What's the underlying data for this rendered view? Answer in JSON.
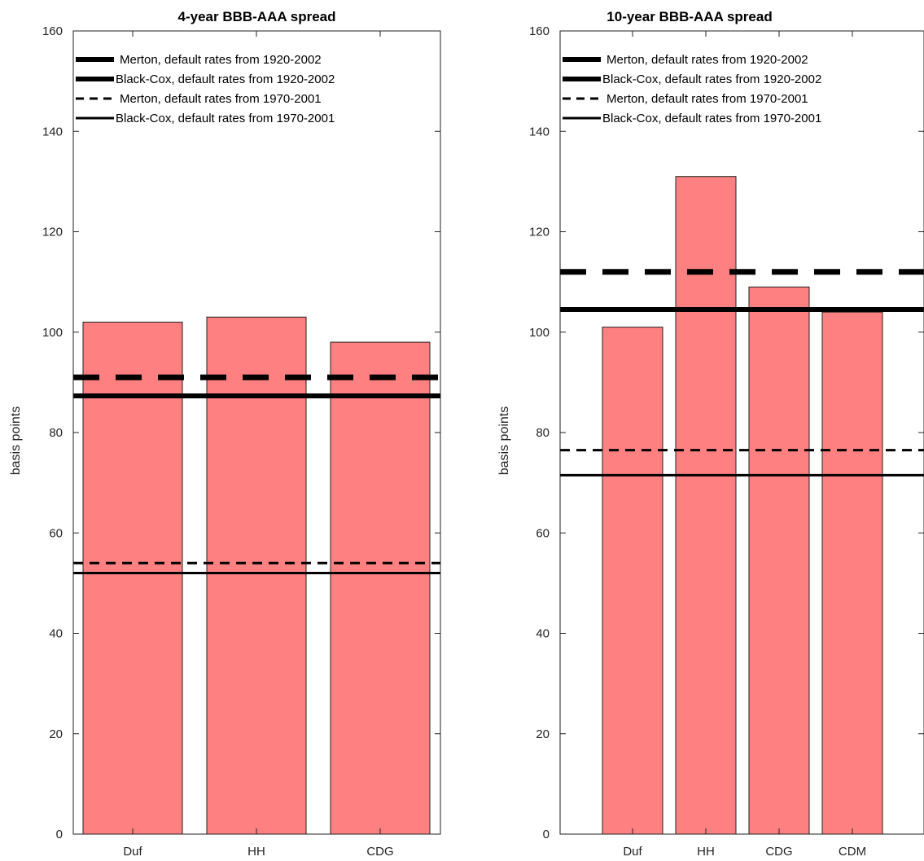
{
  "chart_data": [
    {
      "type": "bar",
      "title": "4-year BBB-AAA spread",
      "xlabel": "",
      "ylabel": "basis points",
      "ylim": [
        0,
        160
      ],
      "yticks": [
        0,
        20,
        40,
        60,
        80,
        100,
        120,
        140,
        160
      ],
      "categories": [
        "Duf",
        "HH",
        "CDG"
      ],
      "values": [
        102,
        103,
        98
      ],
      "bar_color": "#ff8080",
      "reference_lines": [
        {
          "label": "Merton, default rates from 1920-2002",
          "value": 91,
          "style": "thick-dashed"
        },
        {
          "label": "Black-Cox, default rates from 1920-2002",
          "value": 87.3,
          "style": "thick-solid"
        },
        {
          "label": "Merton, default rates from 1970-2001",
          "value": 54,
          "style": "thin-dashed"
        },
        {
          "label": "Black-Cox, default rates from 1970-2001",
          "value": 52,
          "style": "thin-solid"
        }
      ],
      "legend_position": "top-left"
    },
    {
      "type": "bar",
      "title": "10-year BBB-AAA spread",
      "xlabel": "",
      "ylabel": "basis points",
      "ylim": [
        0,
        160
      ],
      "yticks": [
        0,
        20,
        40,
        60,
        80,
        100,
        120,
        140,
        160
      ],
      "categories": [
        "Duf",
        "HH",
        "CDG",
        "CDM"
      ],
      "values": [
        101,
        131,
        109,
        104
      ],
      "bar_color": "#ff8080",
      "reference_lines": [
        {
          "label": "Merton, default rates from 1920-2002",
          "value": 112,
          "style": "thick-dashed"
        },
        {
          "label": "Black-Cox, default rates from 1920-2002",
          "value": 104.5,
          "style": "thick-solid"
        },
        {
          "label": "Merton, default rates from 1970-2001",
          "value": 76.5,
          "style": "thin-dashed"
        },
        {
          "label": "Black-Cox, default rates from 1970-2001",
          "value": 71.5,
          "style": "thin-solid"
        }
      ],
      "legend_position": "top-left"
    }
  ]
}
